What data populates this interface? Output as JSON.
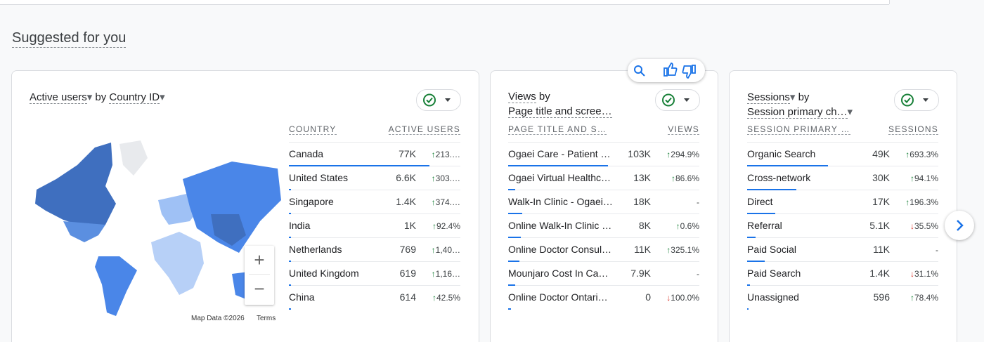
{
  "header": {
    "title": "Suggested for you"
  },
  "cards": [
    {
      "title": {
        "metric": "Active users",
        "by": "by",
        "dimension": "Country ID"
      },
      "columns": [
        "COUNTRY",
        "ACTIVE USERS"
      ],
      "rows": [
        {
          "label": "Canada",
          "value": "77K",
          "change": "213.…",
          "trend": "up"
        },
        {
          "label": "United States",
          "value": "6.6K",
          "change": "303.…",
          "trend": "up"
        },
        {
          "label": "Singapore",
          "value": "1.4K",
          "change": "374.…",
          "trend": "up"
        },
        {
          "label": "India",
          "value": "1K",
          "change": "92.4%",
          "trend": "up"
        },
        {
          "label": "Netherlands",
          "value": "769",
          "change": "1,40…",
          "trend": "up"
        },
        {
          "label": "United Kingdom",
          "value": "619",
          "change": "1,16…",
          "trend": "up"
        },
        {
          "label": "China",
          "value": "614",
          "change": "42.5%",
          "trend": "up"
        }
      ],
      "map": {
        "credit": "Map Data ©2026",
        "terms": "Terms"
      }
    },
    {
      "title": {
        "metric": "Views",
        "by": "by",
        "dimension": "Page title and scree…"
      },
      "columns": [
        "PAGE TITLE AND S…",
        "VIEWS"
      ],
      "rows": [
        {
          "label": "Ogaei Care - Patient …",
          "value": "103K",
          "change": "294.9%",
          "trend": "up"
        },
        {
          "label": "Ogaei Virtual Healthc…",
          "value": "13K",
          "change": "86.6%",
          "trend": "up"
        },
        {
          "label": "Walk-In Clinic - Ogaei…",
          "value": "18K",
          "change": "-"
        },
        {
          "label": "Online Walk-In Clinic …",
          "value": "8K",
          "change": "0.6%",
          "trend": "up"
        },
        {
          "label": "Online Doctor Consul…",
          "value": "11K",
          "change": "325.1%",
          "trend": "up"
        },
        {
          "label": "Mounjaro Cost In Ca…",
          "value": "7.9K",
          "change": "-"
        },
        {
          "label": "Online Doctor Ontari…",
          "value": "0",
          "change": "100.0%",
          "trend": "down"
        }
      ]
    },
    {
      "title": {
        "metric": "Sessions",
        "by": "by",
        "dimension": "Session primary ch…"
      },
      "columns": [
        "SESSION PRIMARY …",
        "SESSIONS"
      ],
      "rows": [
        {
          "label": "Organic Search",
          "value": "49K",
          "change": "693.3%",
          "trend": "up"
        },
        {
          "label": "Cross-network",
          "value": "30K",
          "change": "94.1%",
          "trend": "up"
        },
        {
          "label": "Direct",
          "value": "17K",
          "change": "196.3%",
          "trend": "up"
        },
        {
          "label": "Referral",
          "value": "5.1K",
          "change": "35.5%",
          "trend": "down"
        },
        {
          "label": "Paid Social",
          "value": "11K",
          "change": "-"
        },
        {
          "label": "Paid Search",
          "value": "1.4K",
          "change": "31.1%",
          "trend": "down"
        },
        {
          "label": "Unassigned",
          "value": "596",
          "change": "78.4%",
          "trend": "up"
        }
      ]
    }
  ]
}
